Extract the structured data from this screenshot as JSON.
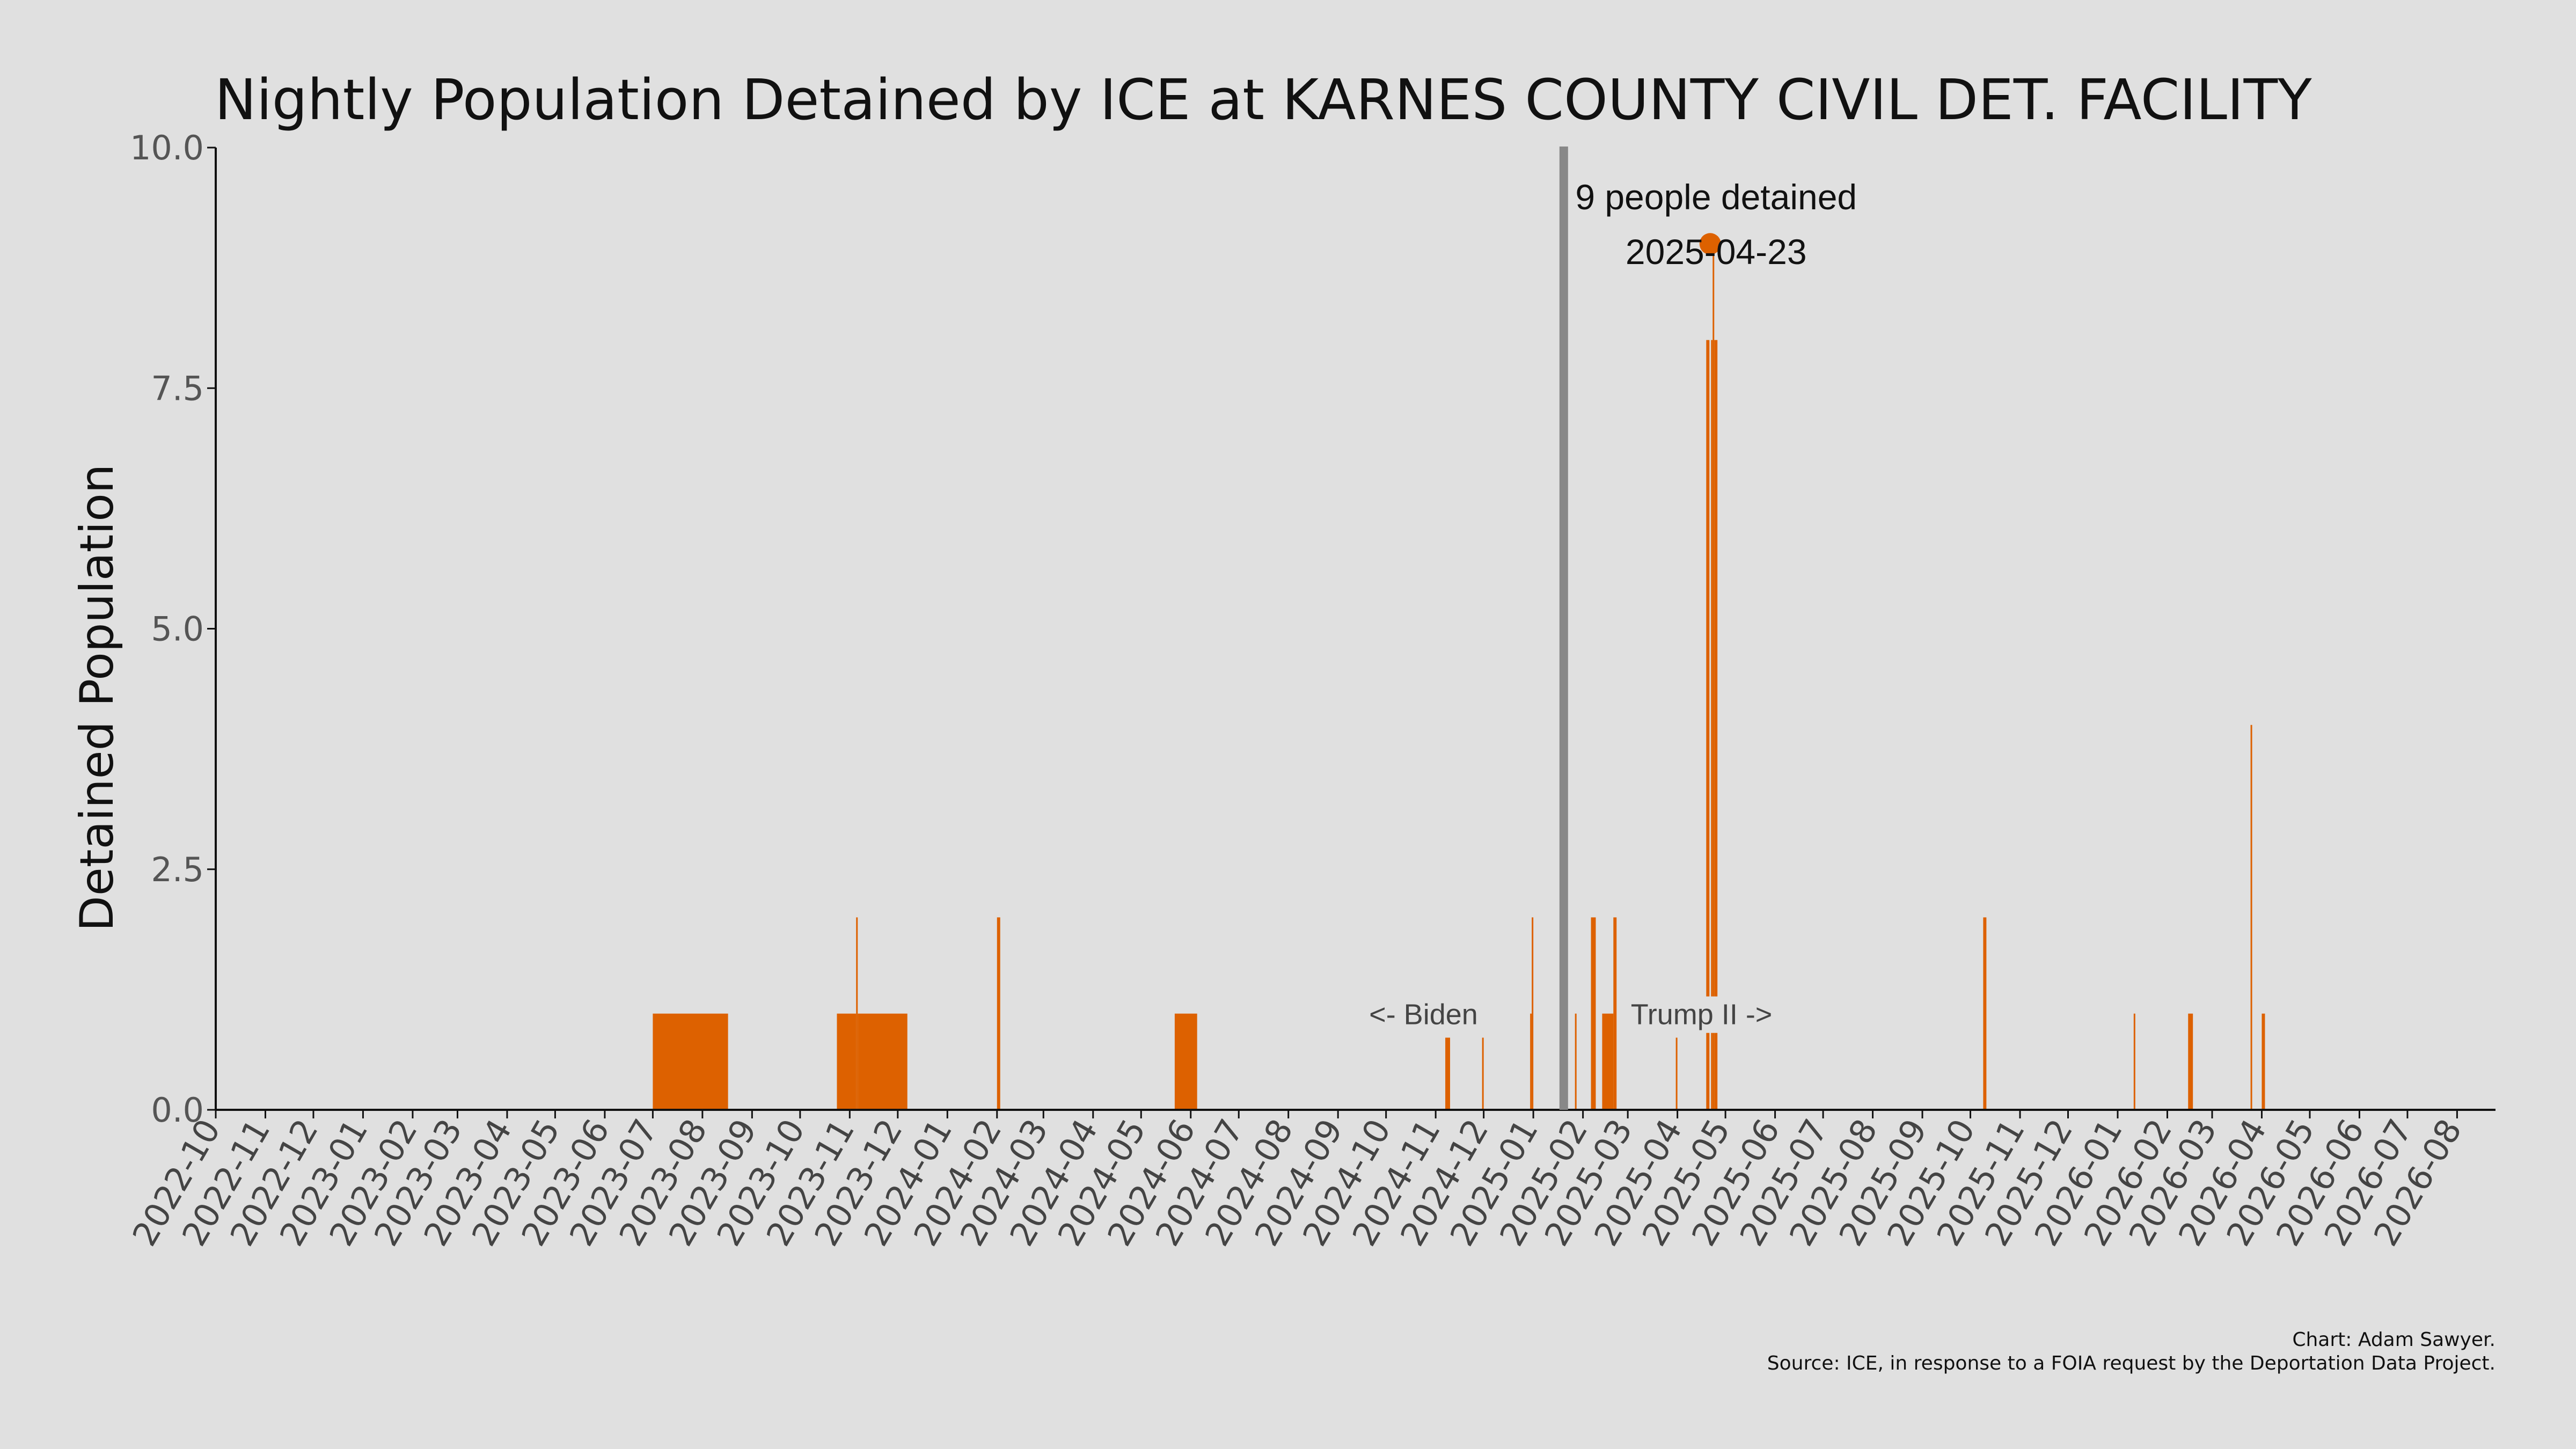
{
  "chart_data": {
    "type": "bar",
    "title": "Nightly Population Detained by ICE at KARNES COUNTY CIVIL DET. FACILITY",
    "ylabel": "Detained Population",
    "xlabel": "",
    "ylim": [
      0,
      10
    ],
    "yticks": [
      "0.0",
      "2.5",
      "5.0",
      "7.5",
      "10.0"
    ],
    "ytick_values": [
      0,
      2.5,
      5,
      7.5,
      10
    ],
    "xlim": [
      "2022-10-01",
      "2026-08-25"
    ],
    "xtick_labels": [
      "2022-10",
      "2022-11",
      "2022-12",
      "2023-01",
      "2023-02",
      "2023-03",
      "2023-04",
      "2023-05",
      "2023-06",
      "2023-07",
      "2023-08",
      "2023-09",
      "2023-10",
      "2023-11",
      "2023-12",
      "2024-01",
      "2024-02",
      "2024-03",
      "2024-04",
      "2024-05",
      "2024-06",
      "2024-07",
      "2024-08",
      "2024-09",
      "2024-10",
      "2024-11",
      "2024-12",
      "2025-01",
      "2025-02",
      "2025-03",
      "2025-04",
      "2025-05",
      "2025-06",
      "2025-07",
      "2025-08",
      "2025-09",
      "2025-10",
      "2025-11",
      "2025-12",
      "2026-01",
      "2026-02",
      "2026-03",
      "2026-04",
      "2026-05",
      "2026-06",
      "2026-07",
      "2026-08"
    ],
    "grid": false,
    "bar_color": "#dd6100",
    "series": [
      {
        "values": [
          {
            "start": "2023-07-01",
            "end": "2023-08-17",
            "value": 1
          },
          {
            "start": "2023-10-24",
            "end": "2023-11-05",
            "value": 1
          },
          {
            "start": "2023-11-05",
            "end": "2023-11-06",
            "value": 2
          },
          {
            "start": "2023-11-06",
            "end": "2023-12-07",
            "value": 1
          },
          {
            "start": "2024-02-01",
            "end": "2024-02-03",
            "value": 2
          },
          {
            "start": "2024-05-22",
            "end": "2024-06-05",
            "value": 1
          },
          {
            "start": "2024-11-07",
            "end": "2024-11-10",
            "value": 0.75
          },
          {
            "start": "2024-11-30",
            "end": "2024-12-01",
            "value": 0.75
          },
          {
            "start": "2024-12-30",
            "end": "2024-12-31",
            "value": 1
          },
          {
            "start": "2024-12-31",
            "end": "2025-01-01",
            "value": 2
          },
          {
            "start": "2025-01-27",
            "end": "2025-01-28",
            "value": 1
          },
          {
            "start": "2025-02-06",
            "end": "2025-02-09",
            "value": 2
          },
          {
            "start": "2025-02-13",
            "end": "2025-02-20",
            "value": 1
          },
          {
            "start": "2025-02-20",
            "end": "2025-02-22",
            "value": 2
          },
          {
            "start": "2025-03-31",
            "end": "2025-04-01",
            "value": 0.75
          },
          {
            "start": "2025-04-19",
            "end": "2025-04-21",
            "value": 8
          },
          {
            "start": "2025-04-22",
            "end": "2025-04-23",
            "value": 8
          },
          {
            "start": "2025-04-23",
            "end": "2025-04-24",
            "value": 9
          },
          {
            "start": "2025-04-24",
            "end": "2025-04-26",
            "value": 8
          },
          {
            "start": "2025-10-09",
            "end": "2025-10-11",
            "value": 2
          },
          {
            "start": "2026-01-11",
            "end": "2026-01-12",
            "value": 1
          },
          {
            "start": "2026-02-14",
            "end": "2026-02-17",
            "value": 1
          },
          {
            "start": "2026-03-25",
            "end": "2026-03-26",
            "value": 4
          },
          {
            "start": "2026-04-01",
            "end": "2026-04-03",
            "value": 1
          }
        ]
      }
    ],
    "peak": {
      "date": "2025-04-23",
      "value": 9,
      "label": "9 people detained",
      "date_label": "2025-04-23",
      "color": "#dd6100"
    },
    "divider": {
      "date": "2025-01-20",
      "color": "#888888",
      "left_label": "<- Biden",
      "right_label": "Trump II ->"
    },
    "credits": {
      "author": "Chart: Adam Sawyer.",
      "source": "Source: ICE, in response to a FOIA request by the Deportation Data Project."
    }
  }
}
